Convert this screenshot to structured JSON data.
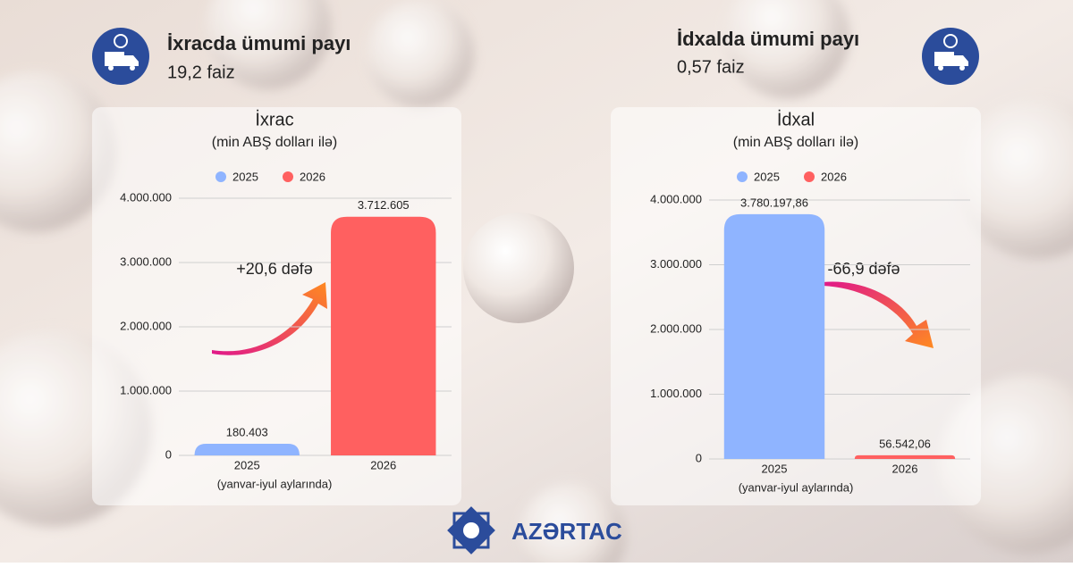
{
  "left_info": {
    "title": "İxracda ümumi payı",
    "value": "19,2 faiz"
  },
  "right_info": {
    "title": "İdxalda ümumi payı",
    "value": "0,57 faiz"
  },
  "brand": "AZƏRTAC",
  "chart_data": [
    {
      "type": "bar",
      "title": "İxrac",
      "subtitle": "(min ABŞ dolları ilə)",
      "x_label": "(yanvar-iyul aylarında)",
      "annotation": "+20,6 dəfə",
      "categories": [
        "2025",
        "2026"
      ],
      "series": [
        {
          "name": "2025",
          "color": "#8fb4ff",
          "values": [
            180403,
            null
          ],
          "value_labels": [
            "180.403",
            null
          ]
        },
        {
          "name": "2026",
          "color": "#ff6060",
          "values": [
            null,
            3712605
          ],
          "value_labels": [
            null,
            "3.712.605"
          ]
        }
      ],
      "ylim": [
        0,
        4000000
      ],
      "yticks": [
        0,
        {
          "value": 1000000,
          "label": "1.000.000"
        },
        {
          "value": 2000000,
          "label": "2.000.000"
        },
        {
          "value": 3000000,
          "label": "3.000.000"
        },
        {
          "value": 4000000,
          "label": "4.000.000"
        }
      ],
      "grid": true,
      "legend": "top"
    },
    {
      "type": "bar",
      "title": "İdxal",
      "subtitle": "(min ABŞ dolları ilə)",
      "x_label": "(yanvar-iyul aylarında)",
      "annotation": "-66,9 dəfə",
      "categories": [
        "2025",
        "2026"
      ],
      "series": [
        {
          "name": "2025",
          "color": "#8fb4ff",
          "values": [
            3780197.86,
            null
          ],
          "value_labels": [
            "3.780.197,86",
            null
          ]
        },
        {
          "name": "2026",
          "color": "#ff6060",
          "values": [
            null,
            56542.06
          ],
          "value_labels": [
            null,
            "56.542,06"
          ]
        }
      ],
      "ylim": [
        0,
        4000000
      ],
      "yticks": [
        0,
        {
          "value": 1000000,
          "label": "1.000.000"
        },
        {
          "value": 2000000,
          "label": "2.000.000"
        },
        {
          "value": 3000000,
          "label": "3.000.000"
        },
        {
          "value": 4000000,
          "label": "4.000.000"
        }
      ],
      "grid": true,
      "legend": "top"
    }
  ]
}
